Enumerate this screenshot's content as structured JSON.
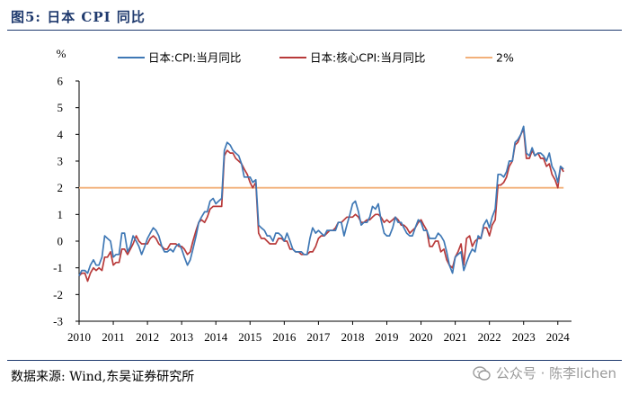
{
  "figure": {
    "title": "图5:  日本 CPI 同比",
    "source": "数据来源:  Wind,东吴证券研究所",
    "watermark": "公众号 · 陈李lichen"
  },
  "colors": {
    "cpi": "#3f78b5",
    "core_cpi": "#b83a3a",
    "ref_line": "#f2b07a",
    "title_blue": "#1f3a6e"
  },
  "chart_data": {
    "type": "line",
    "title": "",
    "ylabel": "%",
    "xlabel": "",
    "ylim": [
      -3,
      6
    ],
    "yticks": [
      "6",
      "5",
      "4",
      "3",
      "2",
      "1",
      "0",
      "-1",
      "-2",
      "-3"
    ],
    "xlim": [
      2010,
      2024.4
    ],
    "xticks": [
      "2010",
      "2011",
      "2012",
      "2013",
      "2014",
      "2015",
      "2016",
      "2017",
      "2018",
      "2019",
      "2020",
      "2021",
      "2022",
      "2023",
      "2024"
    ],
    "legend_position": "top",
    "series": [
      {
        "name": "日本:CPI:当月同比",
        "color": "#3f78b5",
        "x": [
          2010.0,
          2010.08,
          2010.17,
          2010.25,
          2010.33,
          2010.42,
          2010.5,
          2010.58,
          2010.67,
          2010.75,
          2010.83,
          2010.92,
          2011.0,
          2011.08,
          2011.17,
          2011.25,
          2011.33,
          2011.42,
          2011.5,
          2011.58,
          2011.67,
          2011.75,
          2011.83,
          2011.92,
          2012.0,
          2012.08,
          2012.17,
          2012.25,
          2012.33,
          2012.42,
          2012.5,
          2012.58,
          2012.67,
          2012.75,
          2012.83,
          2012.92,
          2013.0,
          2013.08,
          2013.17,
          2013.25,
          2013.33,
          2013.42,
          2013.5,
          2013.58,
          2013.67,
          2013.75,
          2013.83,
          2013.92,
          2014.0,
          2014.08,
          2014.17,
          2014.25,
          2014.33,
          2014.42,
          2014.5,
          2014.58,
          2014.67,
          2014.75,
          2014.83,
          2014.92,
          2015.0,
          2015.08,
          2015.17,
          2015.25,
          2015.33,
          2015.42,
          2015.5,
          2015.58,
          2015.67,
          2015.75,
          2015.83,
          2015.92,
          2016.0,
          2016.08,
          2016.17,
          2016.25,
          2016.33,
          2016.42,
          2016.5,
          2016.58,
          2016.67,
          2016.75,
          2016.83,
          2016.92,
          2017.0,
          2017.08,
          2017.17,
          2017.25,
          2017.33,
          2017.42,
          2017.5,
          2017.58,
          2017.67,
          2017.75,
          2017.83,
          2017.92,
          2018.0,
          2018.08,
          2018.17,
          2018.25,
          2018.33,
          2018.42,
          2018.5,
          2018.58,
          2018.67,
          2018.75,
          2018.83,
          2018.92,
          2019.0,
          2019.08,
          2019.17,
          2019.25,
          2019.33,
          2019.42,
          2019.5,
          2019.58,
          2019.67,
          2019.75,
          2019.83,
          2019.92,
          2020.0,
          2020.08,
          2020.17,
          2020.25,
          2020.33,
          2020.42,
          2020.5,
          2020.58,
          2020.67,
          2020.75,
          2020.83,
          2020.92,
          2021.0,
          2021.08,
          2021.17,
          2021.25,
          2021.33,
          2021.42,
          2021.5,
          2021.58,
          2021.67,
          2021.75,
          2021.83,
          2021.92,
          2022.0,
          2022.08,
          2022.17,
          2022.25,
          2022.33,
          2022.42,
          2022.5,
          2022.58,
          2022.67,
          2022.75,
          2022.83,
          2022.92,
          2023.0,
          2023.08,
          2023.17,
          2023.25,
          2023.33,
          2023.42,
          2023.5,
          2023.58,
          2023.67,
          2023.75,
          2023.83,
          2023.92,
          2024.0,
          2024.08,
          2024.17
        ],
        "values": [
          -1.3,
          -1.1,
          -1.1,
          -1.2,
          -0.9,
          -0.7,
          -0.9,
          -0.9,
          -0.6,
          0.2,
          0.1,
          0.0,
          -0.6,
          -0.5,
          -0.5,
          0.3,
          0.3,
          -0.4,
          -0.2,
          0.2,
          0.0,
          -0.2,
          -0.5,
          -0.2,
          0.1,
          0.3,
          0.5,
          0.4,
          0.2,
          -0.2,
          -0.4,
          -0.4,
          -0.3,
          -0.4,
          -0.2,
          -0.1,
          -0.3,
          -0.6,
          -0.9,
          -0.7,
          -0.3,
          0.2,
          0.7,
          0.9,
          1.1,
          1.1,
          1.5,
          1.6,
          1.4,
          1.5,
          1.6,
          3.4,
          3.7,
          3.6,
          3.4,
          3.3,
          3.2,
          2.9,
          2.4,
          2.4,
          2.4,
          2.2,
          2.3,
          0.6,
          0.5,
          0.4,
          0.2,
          0.2,
          0.0,
          0.3,
          0.3,
          0.2,
          0.0,
          0.3,
          0.0,
          -0.3,
          -0.4,
          -0.4,
          -0.4,
          -0.5,
          -0.5,
          0.1,
          0.5,
          0.3,
          0.4,
          0.3,
          0.2,
          0.4,
          0.4,
          0.4,
          0.4,
          0.7,
          0.7,
          0.2,
          0.6,
          1.0,
          1.4,
          1.5,
          1.1,
          0.6,
          0.7,
          0.7,
          0.9,
          1.3,
          1.2,
          1.4,
          0.8,
          0.3,
          0.2,
          0.2,
          0.5,
          0.9,
          0.7,
          0.7,
          0.5,
          0.3,
          0.2,
          0.2,
          0.5,
          0.8,
          0.7,
          0.4,
          0.4,
          0.1,
          0.1,
          0.1,
          0.3,
          0.2,
          0.0,
          -0.4,
          -0.9,
          -1.2,
          -0.6,
          -0.5,
          -0.4,
          -1.1,
          -0.8,
          -0.5,
          -0.3,
          -0.4,
          0.2,
          0.1,
          0.6,
          0.8,
          0.5,
          0.9,
          1.2,
          2.5,
          2.5,
          2.4,
          2.6,
          3.0,
          3.0,
          3.7,
          3.8,
          4.0,
          4.3,
          3.3,
          3.2,
          3.5,
          3.2,
          3.3,
          3.3,
          3.2,
          3.0,
          3.3,
          2.8,
          2.6,
          2.2,
          2.8,
          2.7
        ]
      },
      {
        "name": "日本:核心CPI:当月同比",
        "color": "#b83a3a",
        "x": [
          2010.0,
          2010.08,
          2010.17,
          2010.25,
          2010.33,
          2010.42,
          2010.5,
          2010.58,
          2010.67,
          2010.75,
          2010.83,
          2010.92,
          2011.0,
          2011.08,
          2011.17,
          2011.25,
          2011.33,
          2011.42,
          2011.5,
          2011.58,
          2011.67,
          2011.75,
          2011.83,
          2011.92,
          2012.0,
          2012.08,
          2012.17,
          2012.25,
          2012.33,
          2012.42,
          2012.5,
          2012.58,
          2012.67,
          2012.75,
          2012.83,
          2012.92,
          2013.0,
          2013.08,
          2013.17,
          2013.25,
          2013.33,
          2013.42,
          2013.5,
          2013.58,
          2013.67,
          2013.75,
          2013.83,
          2013.92,
          2014.0,
          2014.08,
          2014.17,
          2014.25,
          2014.33,
          2014.42,
          2014.5,
          2014.58,
          2014.67,
          2014.75,
          2014.83,
          2014.92,
          2015.0,
          2015.08,
          2015.17,
          2015.25,
          2015.33,
          2015.42,
          2015.5,
          2015.58,
          2015.67,
          2015.75,
          2015.83,
          2015.92,
          2016.0,
          2016.08,
          2016.17,
          2016.25,
          2016.33,
          2016.42,
          2016.5,
          2016.58,
          2016.67,
          2016.75,
          2016.83,
          2016.92,
          2017.0,
          2017.08,
          2017.17,
          2017.25,
          2017.33,
          2017.42,
          2017.5,
          2017.58,
          2017.67,
          2017.75,
          2017.83,
          2017.92,
          2018.0,
          2018.08,
          2018.17,
          2018.25,
          2018.33,
          2018.42,
          2018.5,
          2018.58,
          2018.67,
          2018.75,
          2018.83,
          2018.92,
          2019.0,
          2019.08,
          2019.17,
          2019.25,
          2019.33,
          2019.42,
          2019.5,
          2019.58,
          2019.67,
          2019.75,
          2019.83,
          2019.92,
          2020.0,
          2020.08,
          2020.17,
          2020.25,
          2020.33,
          2020.42,
          2020.5,
          2020.58,
          2020.67,
          2020.75,
          2020.83,
          2020.92,
          2021.0,
          2021.08,
          2021.17,
          2021.25,
          2021.33,
          2021.42,
          2021.5,
          2021.58,
          2021.67,
          2021.75,
          2021.83,
          2021.92,
          2022.0,
          2022.08,
          2022.17,
          2022.25,
          2022.33,
          2022.42,
          2022.5,
          2022.58,
          2022.67,
          2022.75,
          2022.83,
          2022.92,
          2023.0,
          2023.08,
          2023.17,
          2023.25,
          2023.33,
          2023.42,
          2023.5,
          2023.58,
          2023.67,
          2023.75,
          2023.83,
          2023.92,
          2024.0,
          2024.08,
          2024.17
        ],
        "values": [
          -1.3,
          -1.2,
          -1.2,
          -1.5,
          -1.2,
          -1.0,
          -1.1,
          -1.0,
          -1.1,
          -0.6,
          -0.6,
          -0.4,
          -0.9,
          -0.8,
          -0.8,
          -0.3,
          -0.3,
          -0.5,
          -0.3,
          -0.1,
          0.2,
          0.0,
          -0.1,
          -0.1,
          -0.1,
          0.1,
          0.2,
          0.1,
          -0.1,
          -0.2,
          -0.3,
          -0.3,
          -0.1,
          -0.1,
          -0.1,
          -0.2,
          -0.2,
          -0.3,
          -0.5,
          -0.4,
          0.0,
          0.4,
          0.7,
          0.8,
          0.7,
          0.9,
          1.2,
          1.3,
          1.3,
          1.3,
          1.3,
          3.2,
          3.4,
          3.3,
          3.3,
          3.1,
          3.0,
          2.9,
          2.7,
          2.5,
          2.2,
          2.0,
          2.2,
          0.3,
          0.1,
          0.1,
          0.0,
          -0.1,
          -0.1,
          -0.1,
          0.1,
          0.1,
          0.0,
          0.0,
          -0.3,
          -0.3,
          -0.4,
          -0.4,
          -0.5,
          -0.5,
          -0.5,
          -0.4,
          -0.4,
          -0.2,
          0.1,
          0.2,
          0.2,
          0.3,
          0.4,
          0.4,
          0.5,
          0.7,
          0.7,
          0.8,
          0.9,
          0.9,
          0.9,
          1.0,
          0.9,
          0.7,
          0.7,
          0.8,
          0.8,
          0.9,
          1.0,
          1.0,
          0.9,
          0.7,
          0.8,
          0.7,
          0.8,
          0.9,
          0.8,
          0.6,
          0.6,
          0.5,
          0.3,
          0.4,
          0.5,
          0.7,
          0.8,
          0.6,
          0.4,
          -0.2,
          -0.2,
          0.0,
          0.0,
          -0.4,
          -0.3,
          -0.7,
          -0.9,
          -1.0,
          -0.6,
          -0.4,
          -0.1,
          -0.9,
          0.1,
          0.2,
          -0.2,
          0.0,
          0.1,
          0.1,
          0.5,
          0.5,
          0.2,
          0.6,
          0.8,
          2.1,
          2.1,
          2.2,
          2.4,
          2.8,
          3.0,
          3.6,
          3.7,
          4.0,
          4.2,
          3.1,
          3.1,
          3.4,
          3.2,
          3.3,
          3.1,
          3.1,
          2.8,
          2.9,
          2.5,
          2.3,
          2.0,
          2.8,
          2.6
        ]
      },
      {
        "name": "2%",
        "color": "#f2b07a",
        "x": [
          2010.0,
          2024.17
        ],
        "values": [
          2,
          2
        ]
      }
    ]
  }
}
